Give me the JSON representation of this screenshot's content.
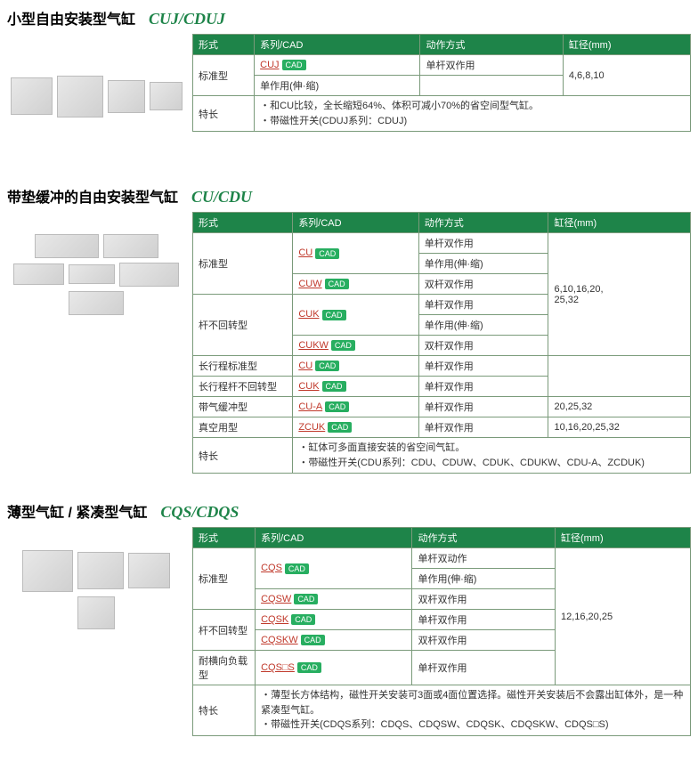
{
  "colors": {
    "header_bg": "#1e8449",
    "header_fg": "#ffffff",
    "border": "#7a9a7a",
    "link": "#c0392b",
    "badge_bg": "#27ae60",
    "title_code": "#1e8449"
  },
  "headers": {
    "type": "形式",
    "series": "系列/CAD",
    "action": "动作方式",
    "bore": "缸径(mm)"
  },
  "cad_label": "CAD",
  "sections": [
    {
      "title_jp": "小型自由安装型气缸",
      "title_code": "CUJ/CDUJ",
      "rows": [
        {
          "type": "标准型",
          "type_rowspan": 2,
          "series": "CUJ",
          "action": "单杆双作用",
          "bore": "4,6,8,10",
          "bore_rowspan": 2
        },
        {
          "action": "单作用(伸·缩)"
        }
      ],
      "feature_label": "特长",
      "features": [
        "和CU比较，全长缩短64%、体积可减小70%的省空间型气缸。",
        "带磁性开关(CDUJ系列：CDUJ)"
      ]
    },
    {
      "title_jp": "带垫缓冲的自由安装型气缸",
      "title_code": "CU/CDU",
      "rows": [
        {
          "type": "标准型",
          "type_rowspan": 3,
          "series": "CU",
          "series_rowspan": 2,
          "action": "单杆双作用",
          "bore": "6,10,16,20,\n25,32",
          "bore_rowspan": 6
        },
        {
          "action": "单作用(伸·缩)"
        },
        {
          "series": "CUW",
          "action": "双杆双作用"
        },
        {
          "type": "杆不回转型",
          "type_rowspan": 3,
          "series": "CUK",
          "series_rowspan": 2,
          "action": "单杆双作用"
        },
        {
          "action": "单作用(伸·缩)"
        },
        {
          "series": "CUKW",
          "action": "双杆双作用"
        },
        {
          "type": "长行程标准型",
          "series": "CU",
          "action": "单杆双作用",
          "bore_rowspan": 2
        },
        {
          "type": "长行程杆不回转型",
          "series": "CUK",
          "action": "单杆双作用"
        },
        {
          "type": "带气缓冲型",
          "series": "CU-A",
          "action": "单杆双作用",
          "bore": "20,25,32"
        },
        {
          "type": "真空用型",
          "series": "ZCUK",
          "action": "单杆双作用",
          "bore": "10,16,20,25,32"
        }
      ],
      "feature_label": "特长",
      "features": [
        "缸体可多面直接安装的省空间气缸。",
        "带磁性开关(CDU系列：CDU、CDUW、CDUK、CDUKW、CDU-A、ZCDUK)"
      ]
    },
    {
      "title_jp": "薄型气缸 / 紧凑型气缸",
      "title_code": "CQS/CDQS",
      "rows": [
        {
          "type": "标准型",
          "type_rowspan": 3,
          "series": "CQS",
          "series_rowspan": 2,
          "action": "单杆双动作",
          "bore": "12,16,20,25",
          "bore_rowspan": 6
        },
        {
          "action": "单作用(伸·缩)"
        },
        {
          "series": "CQSW",
          "action": "双杆双作用"
        },
        {
          "type": "杆不回转型",
          "type_rowspan": 2,
          "series": "CQSK",
          "action": "单杆双作用"
        },
        {
          "series": "CQSKW",
          "action": "双杆双作用"
        },
        {
          "type": "耐横向负载型",
          "series": "CQS□S",
          "action": "单杆双作用"
        }
      ],
      "feature_label": "特长",
      "features": [
        "薄型长方体结构，磁性开关安装可3面或4面位置选择。磁性开关安装后不会露出缸体外，是一种紧凑型气缸。",
        "带磁性开关(CDQS系列：CDQS、CDQSW、CDQSK、CDQSKW、CDQS□S)"
      ]
    }
  ]
}
